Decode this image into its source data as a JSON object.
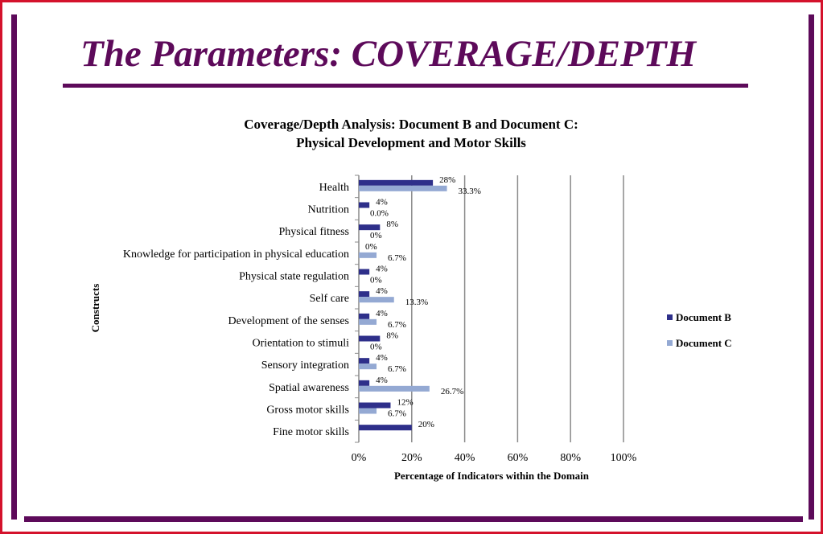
{
  "slide": {
    "title": "The Parameters: COVERAGE/DEPTH"
  },
  "colors": {
    "accent": "#5d0a5a",
    "frame": "#d4122c",
    "document_b": "#2e2f8a",
    "document_c": "#94a9d3"
  },
  "chart_data": {
    "type": "bar",
    "orientation": "horizontal",
    "title": "Coverage/Depth Analysis: Document B and Document C:",
    "subtitle": "Physical Development and Motor Skills",
    "xlabel": "Percentage of Indicators within the Domain",
    "ylabel": "Constructs",
    "xlim": [
      0,
      100
    ],
    "xticks": [
      "0%",
      "20%",
      "40%",
      "60%",
      "80%",
      "100%"
    ],
    "categories": [
      "Health",
      "Nutrition",
      "Physical fitness",
      "Knowledge for participation in physical education",
      "Physical state regulation",
      "Self care",
      "Development of the senses",
      "Orientation to stimuli",
      "Sensory integration",
      "Spatial awareness",
      "Gross motor skills",
      "Fine motor skills"
    ],
    "series": [
      {
        "name": "Document B",
        "values": [
          28,
          4,
          8,
          0,
          4,
          4,
          4,
          8,
          4,
          4,
          12,
          20
        ],
        "labels": [
          "28%",
          "4%",
          "8%",
          "0%",
          "4%",
          "4%",
          "4%",
          "8%",
          "4%",
          "4%",
          "12%",
          "20%"
        ]
      },
      {
        "name": "Document C",
        "values": [
          33.3,
          0,
          0,
          6.7,
          0,
          13.3,
          6.7,
          0,
          6.7,
          26.7,
          6.7,
          0
        ],
        "labels": [
          "33.3%",
          "0.0%",
          "0%",
          "6.7%",
          "0%",
          "13.3%",
          "6.7%",
          "0%",
          "6.7%",
          "26.7%",
          "6.7%",
          ""
        ]
      }
    ],
    "legend": [
      "Document B",
      "Document C"
    ],
    "legend_position": "right",
    "grid": true
  }
}
